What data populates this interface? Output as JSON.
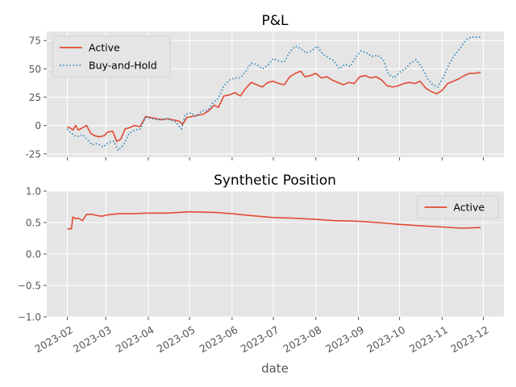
{
  "chart_data": [
    {
      "type": "line",
      "title": "P&L",
      "xlabel": "",
      "ylabel": "",
      "ylim": [
        -28,
        83
      ],
      "yticks": [
        -25,
        0,
        25,
        50,
        75
      ],
      "grid": true,
      "legend_position": "top-left",
      "series": [
        {
          "name": "Active",
          "style": "solid",
          "color": "#E24A33",
          "points": [
            [
              "2023-02-01",
              -1
            ],
            [
              "2023-02-03",
              -2
            ],
            [
              "2023-02-05",
              -4
            ],
            [
              "2023-02-07",
              0
            ],
            [
              "2023-02-09",
              -4
            ],
            [
              "2023-02-12",
              -2
            ],
            [
              "2023-02-15",
              0
            ],
            [
              "2023-02-18",
              -7
            ],
            [
              "2023-02-21",
              -9
            ],
            [
              "2023-02-24",
              -10
            ],
            [
              "2023-02-28",
              -9
            ],
            [
              "2023-03-02",
              -6
            ],
            [
              "2023-03-06",
              -5
            ],
            [
              "2023-03-09",
              -14
            ],
            [
              "2023-03-12",
              -12
            ],
            [
              "2023-03-15",
              -3
            ],
            [
              "2023-03-18",
              -2
            ],
            [
              "2023-03-22",
              0
            ],
            [
              "2023-03-26",
              -1
            ],
            [
              "2023-03-30",
              8
            ],
            [
              "2023-04-03",
              7
            ],
            [
              "2023-04-07",
              6
            ],
            [
              "2023-04-11",
              5
            ],
            [
              "2023-04-15",
              6
            ],
            [
              "2023-04-19",
              5
            ],
            [
              "2023-04-23",
              4
            ],
            [
              "2023-04-26",
              1
            ],
            [
              "2023-04-29",
              7
            ],
            [
              "2023-05-03",
              8
            ],
            [
              "2023-05-07",
              9
            ],
            [
              "2023-05-11",
              10
            ],
            [
              "2023-05-15",
              13
            ],
            [
              "2023-05-19",
              18
            ],
            [
              "2023-05-22",
              16
            ],
            [
              "2023-05-26",
              26
            ],
            [
              "2023-05-30",
              27
            ],
            [
              "2023-06-03",
              29
            ],
            [
              "2023-06-07",
              26
            ],
            [
              "2023-06-11",
              33
            ],
            [
              "2023-06-15",
              38
            ],
            [
              "2023-06-19",
              36
            ],
            [
              "2023-06-23",
              34
            ],
            [
              "2023-06-27",
              38
            ],
            [
              "2023-07-01",
              39
            ],
            [
              "2023-07-05",
              37
            ],
            [
              "2023-07-09",
              36
            ],
            [
              "2023-07-13",
              43
            ],
            [
              "2023-07-17",
              46
            ],
            [
              "2023-07-21",
              48
            ],
            [
              "2023-07-24",
              43
            ],
            [
              "2023-07-28",
              44
            ],
            [
              "2023-08-01",
              46
            ],
            [
              "2023-08-05",
              42
            ],
            [
              "2023-08-09",
              43
            ],
            [
              "2023-08-13",
              40
            ],
            [
              "2023-08-17",
              38
            ],
            [
              "2023-08-21",
              36
            ],
            [
              "2023-08-25",
              38
            ],
            [
              "2023-08-29",
              37
            ],
            [
              "2023-09-02",
              43
            ],
            [
              "2023-09-06",
              44
            ],
            [
              "2023-09-10",
              42
            ],
            [
              "2023-09-14",
              43
            ],
            [
              "2023-09-18",
              40
            ],
            [
              "2023-09-22",
              35
            ],
            [
              "2023-09-26",
              34
            ],
            [
              "2023-09-30",
              35
            ],
            [
              "2023-10-04",
              37
            ],
            [
              "2023-10-08",
              38
            ],
            [
              "2023-10-12",
              37
            ],
            [
              "2023-10-16",
              39
            ],
            [
              "2023-10-20",
              33
            ],
            [
              "2023-10-24",
              30
            ],
            [
              "2023-10-28",
              28
            ],
            [
              "2023-11-01",
              31
            ],
            [
              "2023-11-05",
              37
            ],
            [
              "2023-11-09",
              39
            ],
            [
              "2023-11-13",
              41
            ],
            [
              "2023-11-17",
              44
            ],
            [
              "2023-11-21",
              46
            ],
            [
              "2023-11-25",
              46
            ],
            [
              "2023-11-29",
              47
            ]
          ]
        },
        {
          "name": "Buy-and-Hold",
          "style": "dotted",
          "color": "#348ABD",
          "points": [
            [
              "2023-02-01",
              -3
            ],
            [
              "2023-02-04",
              -7
            ],
            [
              "2023-02-08",
              -10
            ],
            [
              "2023-02-12",
              -8
            ],
            [
              "2023-02-16",
              -13
            ],
            [
              "2023-02-19",
              -17
            ],
            [
              "2023-02-23",
              -16
            ],
            [
              "2023-02-27",
              -19
            ],
            [
              "2023-03-03",
              -15
            ],
            [
              "2023-03-07",
              -14
            ],
            [
              "2023-03-10",
              -22
            ],
            [
              "2023-03-14",
              -17
            ],
            [
              "2023-03-18",
              -7
            ],
            [
              "2023-03-22",
              -4
            ],
            [
              "2023-03-26",
              -3
            ],
            [
              "2023-03-30",
              7
            ],
            [
              "2023-04-03",
              6
            ],
            [
              "2023-04-08",
              5
            ],
            [
              "2023-04-12",
              6
            ],
            [
              "2023-04-17",
              5
            ],
            [
              "2023-04-21",
              3
            ],
            [
              "2023-04-25",
              -3
            ],
            [
              "2023-04-28",
              10
            ],
            [
              "2023-05-02",
              11
            ],
            [
              "2023-05-06",
              8
            ],
            [
              "2023-05-10",
              13
            ],
            [
              "2023-05-14",
              13
            ],
            [
              "2023-05-18",
              20
            ],
            [
              "2023-05-22",
              24
            ],
            [
              "2023-05-26",
              35
            ],
            [
              "2023-05-30",
              40
            ],
            [
              "2023-06-03",
              42
            ],
            [
              "2023-06-07",
              42
            ],
            [
              "2023-06-11",
              48
            ],
            [
              "2023-06-15",
              55
            ],
            [
              "2023-06-19",
              54
            ],
            [
              "2023-06-23",
              50
            ],
            [
              "2023-06-27",
              53
            ],
            [
              "2023-07-01",
              59
            ],
            [
              "2023-07-05",
              57
            ],
            [
              "2023-07-09",
              56
            ],
            [
              "2023-07-13",
              65
            ],
            [
              "2023-07-17",
              70
            ],
            [
              "2023-07-21",
              68
            ],
            [
              "2023-07-25",
              64
            ],
            [
              "2023-07-29",
              66
            ],
            [
              "2023-08-02",
              70
            ],
            [
              "2023-08-06",
              63
            ],
            [
              "2023-08-10",
              60
            ],
            [
              "2023-08-14",
              57
            ],
            [
              "2023-08-18",
              50
            ],
            [
              "2023-08-22",
              54
            ],
            [
              "2023-08-26",
              52
            ],
            [
              "2023-08-30",
              60
            ],
            [
              "2023-09-03",
              66
            ],
            [
              "2023-09-07",
              64
            ],
            [
              "2023-09-11",
              61
            ],
            [
              "2023-09-15",
              62
            ],
            [
              "2023-09-19",
              58
            ],
            [
              "2023-09-23",
              45
            ],
            [
              "2023-09-27",
              42
            ],
            [
              "2023-10-01",
              47
            ],
            [
              "2023-10-05",
              50
            ],
            [
              "2023-10-09",
              55
            ],
            [
              "2023-10-13",
              58
            ],
            [
              "2023-10-17",
              52
            ],
            [
              "2023-10-21",
              42
            ],
            [
              "2023-10-25",
              36
            ],
            [
              "2023-10-29",
              34
            ],
            [
              "2023-11-02",
              43
            ],
            [
              "2023-11-06",
              54
            ],
            [
              "2023-11-10",
              62
            ],
            [
              "2023-11-14",
              68
            ],
            [
              "2023-11-18",
              75
            ],
            [
              "2023-11-22",
              78
            ],
            [
              "2023-11-29",
              78
            ]
          ]
        }
      ]
    },
    {
      "type": "line",
      "title": "Synthetic Position",
      "xlabel": "date",
      "ylabel": "",
      "ylim": [
        -1.0,
        1.0
      ],
      "yticks": [
        -1.0,
        -0.5,
        0.0,
        0.5,
        1.0
      ],
      "ytick_labels": [
        "−1.0",
        "−0.5",
        "0.0",
        "0.5",
        "1.0"
      ],
      "grid": true,
      "legend_position": "top-right",
      "x_tick_labels": [
        "2023-02",
        "2023-03",
        "2023-04",
        "2023-05",
        "2023-06",
        "2023-07",
        "2023-08",
        "2023-09",
        "2023-10",
        "2023-11",
        "2023-12"
      ],
      "series": [
        {
          "name": "Active",
          "style": "solid",
          "color": "#E24A33",
          "points": [
            [
              "2023-02-01",
              0.4
            ],
            [
              "2023-02-04",
              0.4
            ],
            [
              "2023-02-05",
              0.59
            ],
            [
              "2023-02-07",
              0.56
            ],
            [
              "2023-02-09",
              0.57
            ],
            [
              "2023-02-12",
              0.53
            ],
            [
              "2023-02-15",
              0.63
            ],
            [
              "2023-02-19",
              0.63
            ],
            [
              "2023-02-23",
              0.61
            ],
            [
              "2023-02-26",
              0.6
            ],
            [
              "2023-03-02",
              0.62
            ],
            [
              "2023-03-10",
              0.64
            ],
            [
              "2023-03-20",
              0.64
            ],
            [
              "2023-04-01",
              0.65
            ],
            [
              "2023-04-15",
              0.65
            ],
            [
              "2023-05-01",
              0.67
            ],
            [
              "2023-05-20",
              0.66
            ],
            [
              "2023-06-01",
              0.64
            ],
            [
              "2023-06-15",
              0.61
            ],
            [
              "2023-07-01",
              0.58
            ],
            [
              "2023-07-15",
              0.57
            ],
            [
              "2023-08-01",
              0.55
            ],
            [
              "2023-08-15",
              0.53
            ],
            [
              "2023-09-01",
              0.52
            ],
            [
              "2023-09-15",
              0.5
            ],
            [
              "2023-10-01",
              0.47
            ],
            [
              "2023-10-15",
              0.45
            ],
            [
              "2023-11-01",
              0.43
            ],
            [
              "2023-11-15",
              0.41
            ],
            [
              "2023-11-29",
              0.42
            ]
          ]
        }
      ]
    }
  ]
}
